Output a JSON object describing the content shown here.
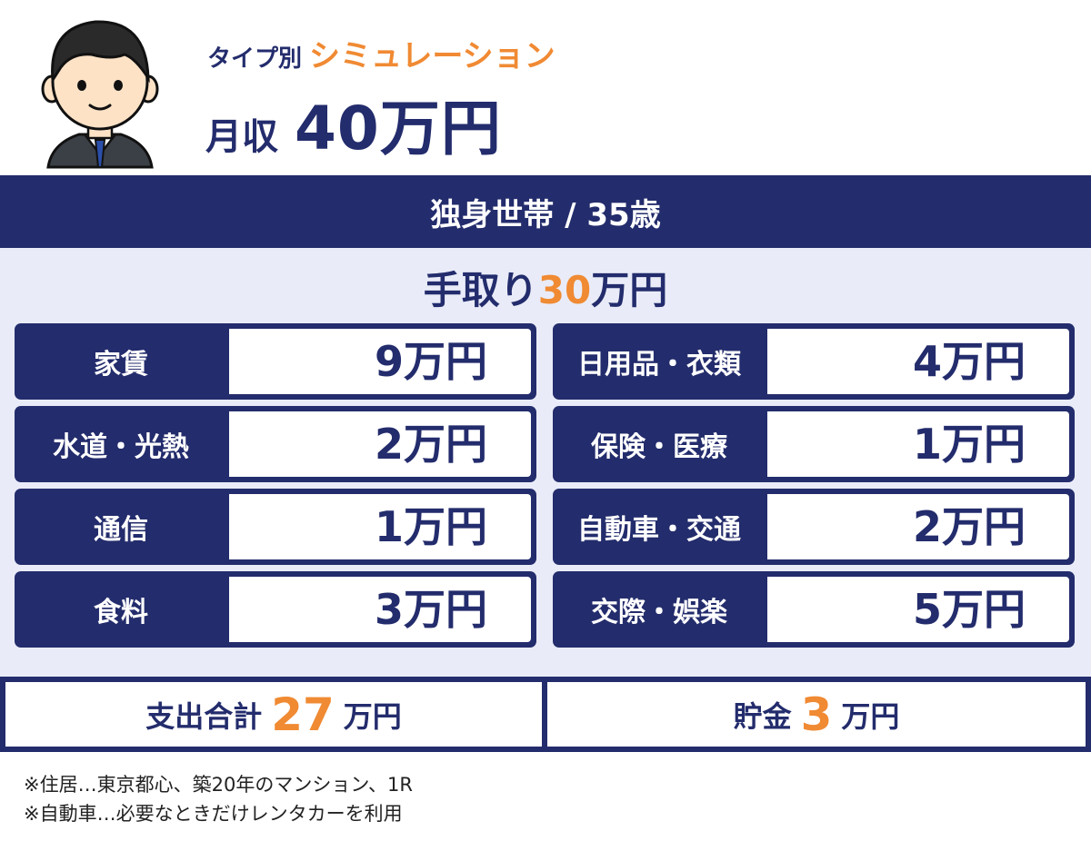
{
  "header": {
    "subtitle_prefix": "タイプ別",
    "subtitle_accent": "シミュレーション",
    "income_label": "月収",
    "income_value": "40万円"
  },
  "household": "独身世帯 / 35歳",
  "take_home": {
    "prefix": "手取り",
    "number": "30",
    "suffix": "万円"
  },
  "expenses": {
    "left": [
      {
        "label": "家賃",
        "value": "9万円"
      },
      {
        "label": "水道・光熱",
        "value": "2万円"
      },
      {
        "label": "通信",
        "value": "1万円"
      },
      {
        "label": "食料",
        "value": "3万円"
      }
    ],
    "right": [
      {
        "label": "日用品・衣類",
        "value": "4万円"
      },
      {
        "label": "保険・医療",
        "value": "1万円"
      },
      {
        "label": "自動車・交通",
        "value": "2万円"
      },
      {
        "label": "交際・娯楽",
        "value": "5万円"
      }
    ]
  },
  "totals": {
    "spending_label": "支出合計",
    "spending_number": "27",
    "savings_label": "貯金",
    "savings_number": "3",
    "unit": "万円"
  },
  "notes": [
    "※住居…東京都心、築20年のマンション、1R",
    "※自動車…必要なときだけレンタカーを利用"
  ],
  "colors": {
    "navy": "#232c6c",
    "orange": "#f08a33",
    "panel": "#e9ecf8"
  },
  "icons": {
    "avatar": "businessman-avatar-icon"
  }
}
